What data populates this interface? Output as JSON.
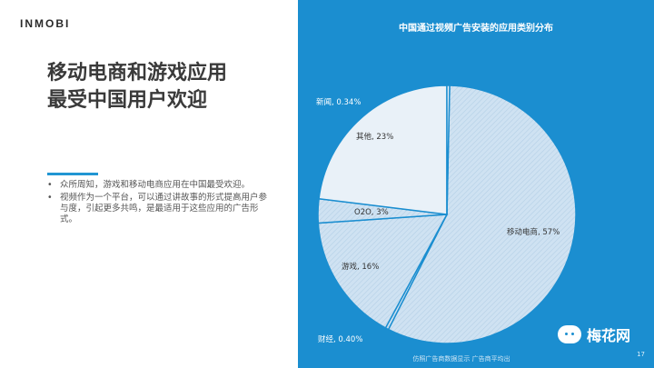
{
  "header": {
    "logo": "INMOBI"
  },
  "slide": {
    "title_line1": "移动电商和游戏应用",
    "title_line2": "最受中国用户欢迎",
    "bullet_marker": "•",
    "bullets": [
      "众所周知，游戏和移动电商应用在中国最受欢迎。",
      "视频作为一个平台，可以通过讲故事的形式提高用户参与度，引起更多共鸣，是最适用于这些应用的广告形式。"
    ],
    "page_number": "17",
    "source": "仿照广告商数据显示 广告商平均出",
    "watermark": "梅花网"
  },
  "colors": {
    "panel": "#1b8ed0",
    "pie_fill": "#c8def0",
    "pie_other": "#e9f1f8",
    "accent": "#2196d3"
  },
  "chart_data": {
    "type": "pie",
    "title": "中国通过视频广告安装的应用类别分布",
    "slices": [
      {
        "label": "移动电商, 57%",
        "value": 57
      },
      {
        "label": "财经, 0.40%",
        "value": 0.4
      },
      {
        "label": "游戏, 16%",
        "value": 16
      },
      {
        "label": "O2O, 3%",
        "value": 3
      },
      {
        "label": "其他, 23%",
        "value": 23
      },
      {
        "label": "新闻, 0.34%",
        "value": 0.34
      }
    ]
  }
}
